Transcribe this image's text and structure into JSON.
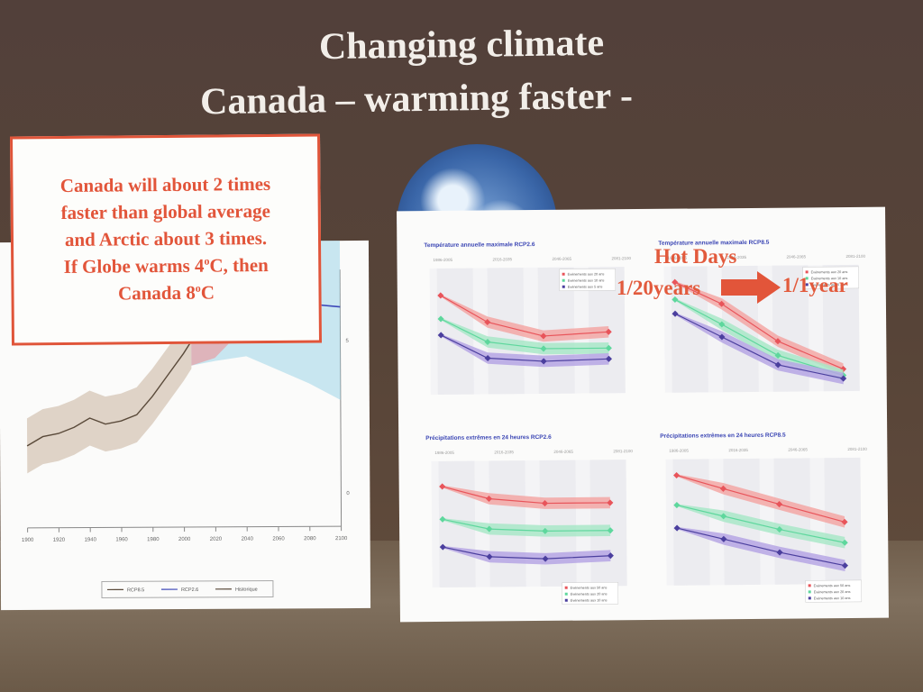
{
  "slide": {
    "title_line1": "Changing climate",
    "title_line2": "Canada – warming faster -",
    "callout": {
      "line1": "Canada will about 2 times",
      "line2": "faster than global average",
      "line3": "and  Arctic about 3 times.",
      "line4_a": "If Globe warms 4",
      "line4_sup": "o",
      "line4_b": "C, then",
      "line5_a": "Canada 8",
      "line5_sup": "o",
      "line5_b": "C"
    },
    "hot_days": {
      "label": "Hot Days",
      "from": "1/20years",
      "to": "1/1year"
    }
  },
  "colors": {
    "accent_red": "#e2553a",
    "rcp85": "#e8545a",
    "rcp26": "#4a4fb0",
    "historical": "#6a5a4a",
    "green_band": "#63d6a0",
    "purple_band": "#7a62c4"
  },
  "chart_data": [
    {
      "type": "line",
      "id": "global_temperature",
      "x_ticks": [
        1900,
        1920,
        1940,
        1960,
        1980,
        2000,
        2020,
        2040,
        2060,
        2080,
        2100
      ],
      "xlim": [
        1900,
        2100
      ],
      "ylim": [
        -1,
        15
      ],
      "y_ticks_right": [
        0,
        5,
        10,
        15
      ],
      "legend": [
        "RCP8.5",
        "RCP2.6",
        "Historique"
      ],
      "series": [
        {
          "name": "Historique",
          "x": [
            1900,
            1910,
            1920,
            1930,
            1940,
            1950,
            1960,
            1970,
            1980,
            1990,
            2000,
            2005
          ],
          "values": [
            1.6,
            1.9,
            2.0,
            2.2,
            2.5,
            2.3,
            2.4,
            2.6,
            3.2,
            3.9,
            4.6,
            5.0
          ]
        },
        {
          "name": "RCP8.5",
          "x": [
            2005,
            2020,
            2040,
            2060,
            2080,
            2100
          ],
          "values": [
            5.0,
            5.8,
            7.4,
            9.2,
            11.0,
            12.8
          ]
        },
        {
          "name": "RCP2.6",
          "x": [
            2005,
            2020,
            2040,
            2060,
            2080,
            2100
          ],
          "values": [
            5.0,
            5.6,
            6.2,
            6.2,
            6.2,
            6.1
          ]
        }
      ]
    },
    {
      "type": "line",
      "id": "tmax_rcp26",
      "title": "Température annuelle maximale RCP2.6",
      "periods": [
        "1986-2005",
        "2016-2035",
        "2046-2065",
        "2081-2100"
      ],
      "x": [
        2000,
        2025,
        2055,
        2090
      ],
      "series": [
        {
          "name": "Événements aux 20 ans",
          "values": [
            36.5,
            35.0,
            34.2,
            34.4
          ]
        },
        {
          "name": "Événements aux 10 ans",
          "values": [
            35.2,
            33.9,
            33.5,
            33.5
          ]
        },
        {
          "name": "Événements aux 5 ans",
          "values": [
            34.3,
            33.0,
            32.8,
            32.9
          ]
        }
      ]
    },
    {
      "type": "line",
      "id": "tmax_rcp85",
      "title": "Température annuelle maximale RCP8.5",
      "periods": [
        "1986-2005",
        "2016-2035",
        "2046-2065",
        "2081-2100"
      ],
      "x": [
        2000,
        2025,
        2055,
        2090
      ],
      "series": [
        {
          "name": "Événements aux 20 ans",
          "values": [
            37.0,
            35.6,
            33.2,
            31.4
          ]
        },
        {
          "name": "Événements aux 10 ans",
          "values": [
            35.9,
            34.3,
            32.3,
            31.0
          ]
        },
        {
          "name": "Événements aux 5 ans",
          "values": [
            35.0,
            33.5,
            31.7,
            30.8
          ]
        }
      ]
    },
    {
      "type": "line",
      "id": "precip_rcp26",
      "title": "Précipitations extrêmes en 24 heures RCP2.6",
      "periods": [
        "1986-2005",
        "2016-2035",
        "2046-2065",
        "2081-2100"
      ],
      "x": [
        2000,
        2025,
        2055,
        2090
      ],
      "series": [
        {
          "name": "Événements aux 50 ans",
          "values": [
            60,
            55,
            53,
            53
          ]
        },
        {
          "name": "Événements aux 20 ans",
          "values": [
            47,
            43,
            42,
            42
          ]
        },
        {
          "name": "Événements aux 10 ans",
          "values": [
            36,
            32,
            31,
            32
          ]
        }
      ]
    },
    {
      "type": "line",
      "id": "precip_rcp85",
      "title": "Précipitations extrêmes en 24 heures RCP8.5",
      "periods": [
        "1986-2005",
        "2016-2035",
        "2046-2065",
        "2081-2100"
      ],
      "x": [
        2000,
        2025,
        2055,
        2090
      ],
      "series": [
        {
          "name": "Événements aux 50 ans",
          "values": [
            63,
            57,
            50,
            42
          ]
        },
        {
          "name": "Événements aux 20 ans",
          "values": [
            50,
            45,
            39,
            33
          ]
        },
        {
          "name": "Événements aux 10 ans",
          "values": [
            40,
            35,
            29,
            23
          ]
        }
      ]
    }
  ]
}
